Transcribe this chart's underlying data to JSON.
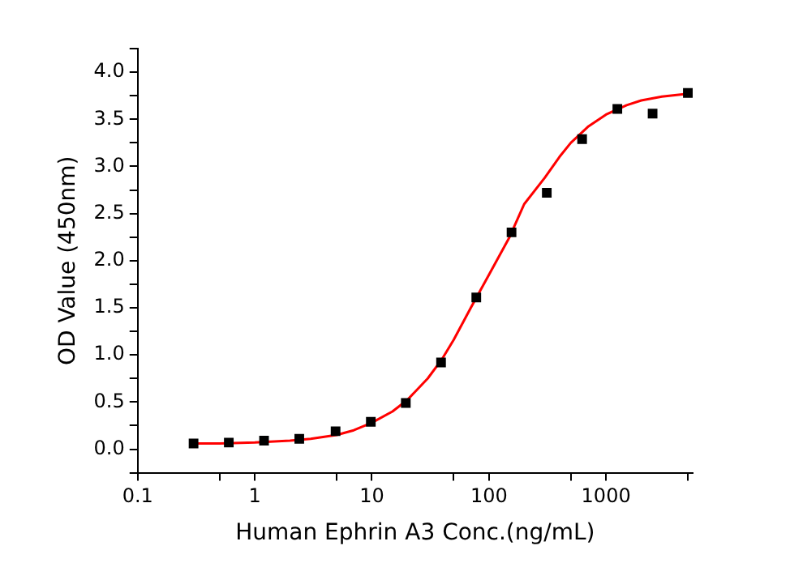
{
  "chart_data": {
    "type": "scatter",
    "xlabel": "Human Ephrin A3 Conc.(ng/mL)",
    "ylabel": "OD Value (450nm)",
    "log": "x",
    "grid": false,
    "legend": false,
    "xlim": [
      0.1,
      5500
    ],
    "ylim": [
      -0.25,
      4.25
    ],
    "xticks": [
      0.1,
      {
        "value": 0.5,
        "label": null
      },
      1,
      {
        "value": 5,
        "label": null
      },
      10,
      {
        "value": 50,
        "label": null
      },
      100,
      {
        "value": 500,
        "label": null
      },
      1000,
      {
        "value": 5000,
        "label": null
      }
    ],
    "yticks": [
      {
        "value": -0.25,
        "label": null
      },
      {
        "value": 0,
        "label": "0.0"
      },
      {
        "value": 0.25,
        "label": null
      },
      0.5,
      {
        "value": 0.75,
        "label": null
      },
      {
        "value": 1,
        "label": "1.0"
      },
      {
        "value": 1.25,
        "label": null
      },
      1.5,
      {
        "value": 1.75,
        "label": null
      },
      {
        "value": 2,
        "label": "2.0"
      },
      {
        "value": 2.25,
        "label": null
      },
      2.5,
      {
        "value": 2.75,
        "label": null
      },
      {
        "value": 3,
        "label": "3.0"
      },
      {
        "value": 3.25,
        "label": null
      },
      3.5,
      {
        "value": 3.75,
        "label": null
      },
      {
        "value": 4,
        "label": "4.0"
      },
      {
        "value": 4.25,
        "label": null
      }
    ],
    "series": [
      {
        "type": "scatter",
        "color": "#000000",
        "marker": "square",
        "x": [
          0.3,
          0.6,
          1.2,
          2.4,
          4.9,
          9.8,
          19.5,
          39,
          78,
          156,
          312,
          625,
          1250,
          2500,
          5000
        ],
        "values": [
          0.06,
          0.07,
          0.09,
          0.11,
          0.19,
          0.29,
          0.49,
          0.92,
          1.61,
          2.3,
          2.72,
          3.29,
          3.61,
          3.56,
          3.78
        ]
      },
      {
        "type": "line",
        "color": "#ff0000",
        "marker": "none",
        "x": [
          0.3,
          0.5,
          1,
          2,
          3,
          5,
          7,
          10,
          15,
          20,
          30,
          40,
          50,
          70,
          100,
          150,
          200,
          300,
          400,
          500,
          700,
          1000,
          1500,
          2000,
          3000,
          5000
        ],
        "values": [
          0.06,
          0.06,
          0.07,
          0.09,
          0.11,
          0.15,
          0.2,
          0.28,
          0.4,
          0.52,
          0.75,
          0.96,
          1.16,
          1.5,
          1.85,
          2.25,
          2.6,
          2.88,
          3.1,
          3.25,
          3.42,
          3.55,
          3.65,
          3.7,
          3.74,
          3.77
        ]
      }
    ]
  }
}
